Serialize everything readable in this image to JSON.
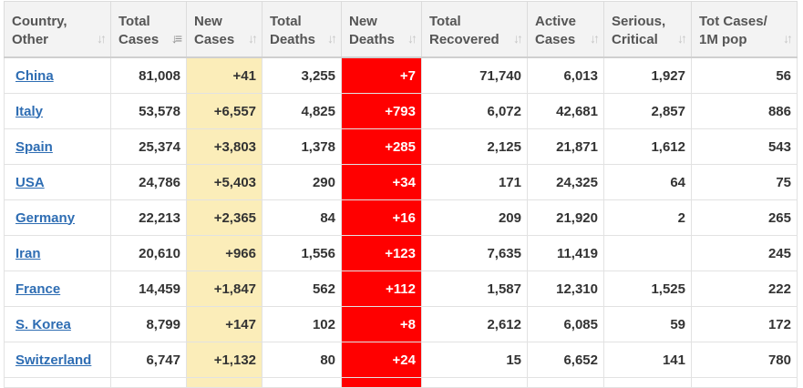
{
  "colors": {
    "header_bg": "#f3f3f3",
    "new_cases_bg": "#fbedb9",
    "new_deaths_bg": "#ff0000",
    "link": "#2e6db3"
  },
  "headers": [
    {
      "label": "Country,\nOther",
      "sort_icon": "sort-icon"
    },
    {
      "label": "Total\nCases",
      "sort_icon": "sort-desc-icon"
    },
    {
      "label": "New\nCases",
      "sort_icon": "sort-icon"
    },
    {
      "label": "Total\nDeaths",
      "sort_icon": "sort-icon"
    },
    {
      "label": "New\nDeaths",
      "sort_icon": "sort-icon"
    },
    {
      "label": "Total\nRecovered",
      "sort_icon": "sort-icon"
    },
    {
      "label": "Active\nCases",
      "sort_icon": "sort-icon"
    },
    {
      "label": "Serious,\nCritical",
      "sort_icon": "sort-icon"
    },
    {
      "label": "Tot Cases/\n1M pop",
      "sort_icon": "sort-icon"
    }
  ],
  "rows": [
    {
      "country": "China",
      "total_cases": "81,008",
      "new_cases": "+41",
      "total_deaths": "3,255",
      "new_deaths": "+7",
      "total_recovered": "71,740",
      "active_cases": "6,013",
      "serious_critical": "1,927",
      "per_million": "56"
    },
    {
      "country": "Italy",
      "total_cases": "53,578",
      "new_cases": "+6,557",
      "total_deaths": "4,825",
      "new_deaths": "+793",
      "total_recovered": "6,072",
      "active_cases": "42,681",
      "serious_critical": "2,857",
      "per_million": "886"
    },
    {
      "country": "Spain",
      "total_cases": "25,374",
      "new_cases": "+3,803",
      "total_deaths": "1,378",
      "new_deaths": "+285",
      "total_recovered": "2,125",
      "active_cases": "21,871",
      "serious_critical": "1,612",
      "per_million": "543"
    },
    {
      "country": "USA",
      "total_cases": "24,786",
      "new_cases": "+5,403",
      "total_deaths": "290",
      "new_deaths": "+34",
      "total_recovered": "171",
      "active_cases": "24,325",
      "serious_critical": "64",
      "per_million": "75"
    },
    {
      "country": "Germany",
      "total_cases": "22,213",
      "new_cases": "+2,365",
      "total_deaths": "84",
      "new_deaths": "+16",
      "total_recovered": "209",
      "active_cases": "21,920",
      "serious_critical": "2",
      "per_million": "265"
    },
    {
      "country": "Iran",
      "total_cases": "20,610",
      "new_cases": "+966",
      "total_deaths": "1,556",
      "new_deaths": "+123",
      "total_recovered": "7,635",
      "active_cases": "11,419",
      "serious_critical": "",
      "per_million": "245"
    },
    {
      "country": "France",
      "total_cases": "14,459",
      "new_cases": "+1,847",
      "total_deaths": "562",
      "new_deaths": "+112",
      "total_recovered": "1,587",
      "active_cases": "12,310",
      "serious_critical": "1,525",
      "per_million": "222"
    },
    {
      "country": "S. Korea",
      "total_cases": "8,799",
      "new_cases": "+147",
      "total_deaths": "102",
      "new_deaths": "+8",
      "total_recovered": "2,612",
      "active_cases": "6,085",
      "serious_critical": "59",
      "per_million": "172"
    },
    {
      "country": "Switzerland",
      "total_cases": "6,747",
      "new_cases": "+1,132",
      "total_deaths": "80",
      "new_deaths": "+24",
      "total_recovered": "15",
      "active_cases": "6,652",
      "serious_critical": "141",
      "per_million": "780"
    }
  ]
}
